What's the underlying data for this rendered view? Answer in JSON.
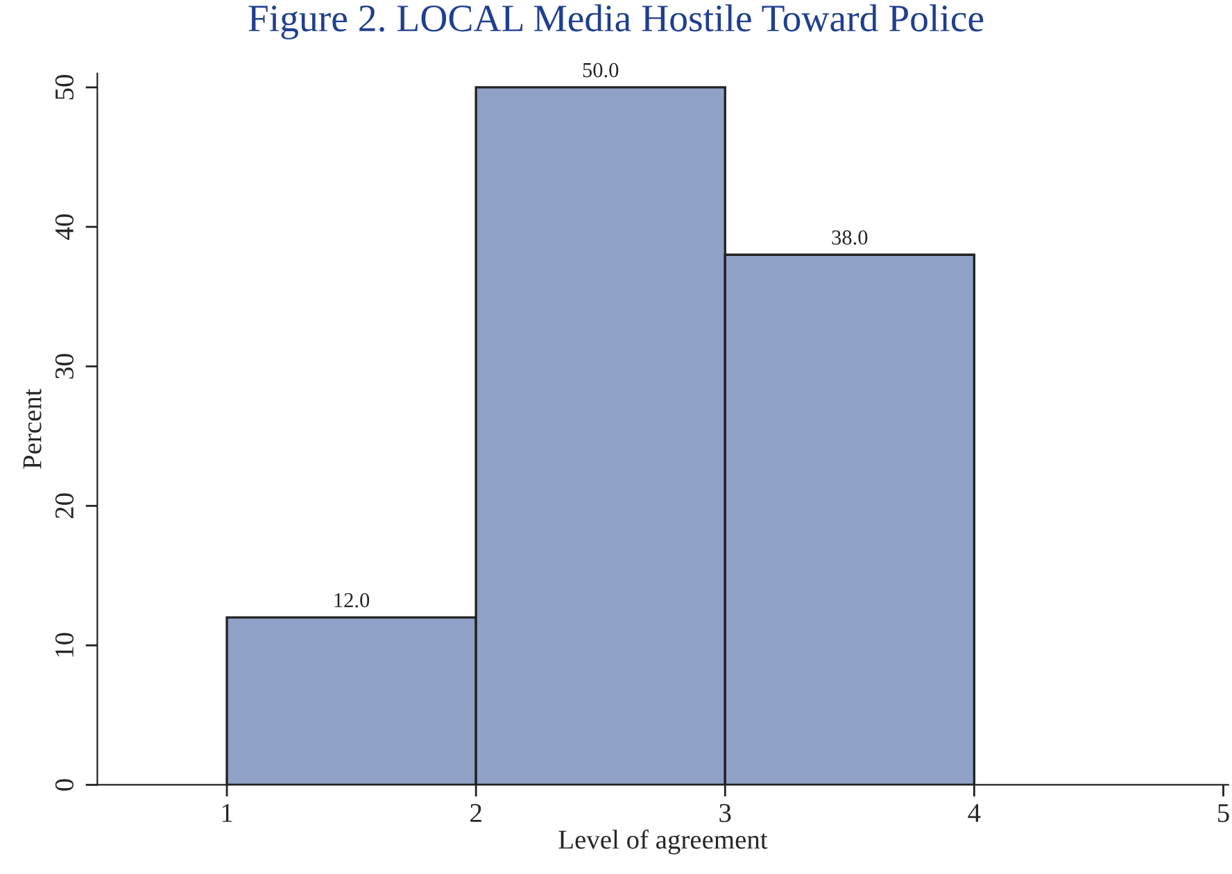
{
  "chart_data": {
    "type": "histogram",
    "title": "Figure 2. LOCAL Media Hostile Toward Police",
    "xlabel": "Level of agreement",
    "ylabel": "Percent",
    "bins": [
      1,
      2,
      3,
      4
    ],
    "values": [
      12,
      50,
      38
    ],
    "value_labels": [
      "12.0",
      "50.0",
      "38.0"
    ],
    "color": "#8fa1c7",
    "xlim": [
      0.48,
      5.02
    ],
    "xticks": [
      1,
      2,
      3,
      4,
      5
    ],
    "ylim": [
      0,
      51
    ],
    "yticks": [
      0,
      10,
      20,
      30,
      40,
      50
    ],
    "grid": false
  }
}
